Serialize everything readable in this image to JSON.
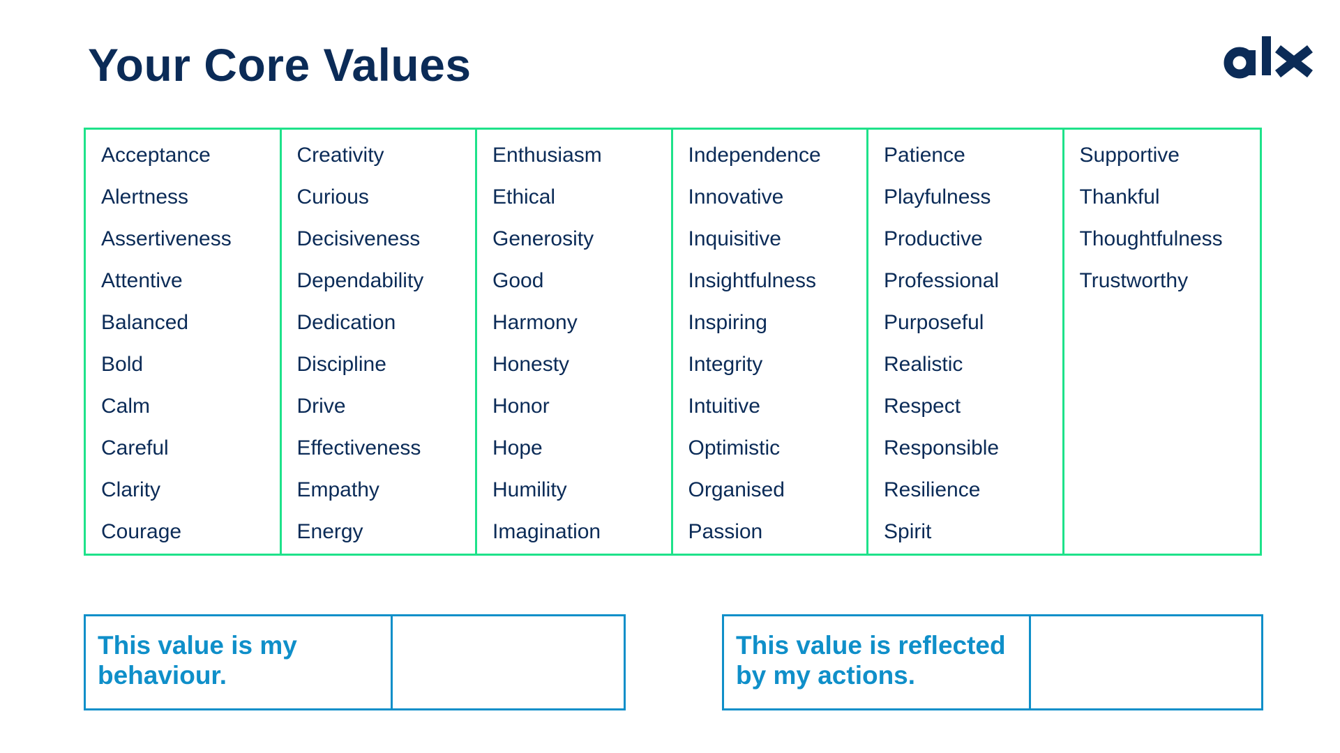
{
  "page": {
    "title": "Your Core Values",
    "logo_text": "alx",
    "colors": {
      "title": "#0b2b57",
      "grid_border": "#1ee28a",
      "statement_border": "#0f8fc9",
      "statement_text": "#0f8fc9"
    }
  },
  "values_columns": [
    [
      "Acceptance",
      "Alertness",
      "Assertiveness",
      "Attentive",
      "Balanced",
      "Bold",
      "Calm",
      "Careful",
      "Clarity",
      "Courage"
    ],
    [
      "Creativity",
      "Curious",
      "Decisiveness",
      "Dependability",
      "Dedication",
      "Discipline",
      "Drive",
      "Effectiveness",
      "Empathy",
      "Energy"
    ],
    [
      "Enthusiasm",
      "Ethical",
      "Generosity",
      "Good",
      "Harmony",
      "Honesty",
      "Honor",
      "Hope",
      "Humility",
      "Imagination"
    ],
    [
      "Independence",
      "Innovative",
      "Inquisitive",
      "Insightfulness",
      "Inspiring",
      "Integrity",
      "Intuitive",
      "Optimistic",
      "Organised",
      "Passion"
    ],
    [
      "Patience",
      "Playfulness",
      "Productive",
      "Professional",
      "Purposeful",
      "Realistic",
      "Respect",
      "Responsible",
      "Resilience",
      "Spirit"
    ],
    [
      "Supportive",
      "Thankful",
      "Thoughtfulness",
      "Trustworthy"
    ]
  ],
  "statements": [
    {
      "label": "This value is my behaviour.",
      "answer": ""
    },
    {
      "label": "This value is reflected by my actions.",
      "answer": ""
    }
  ]
}
